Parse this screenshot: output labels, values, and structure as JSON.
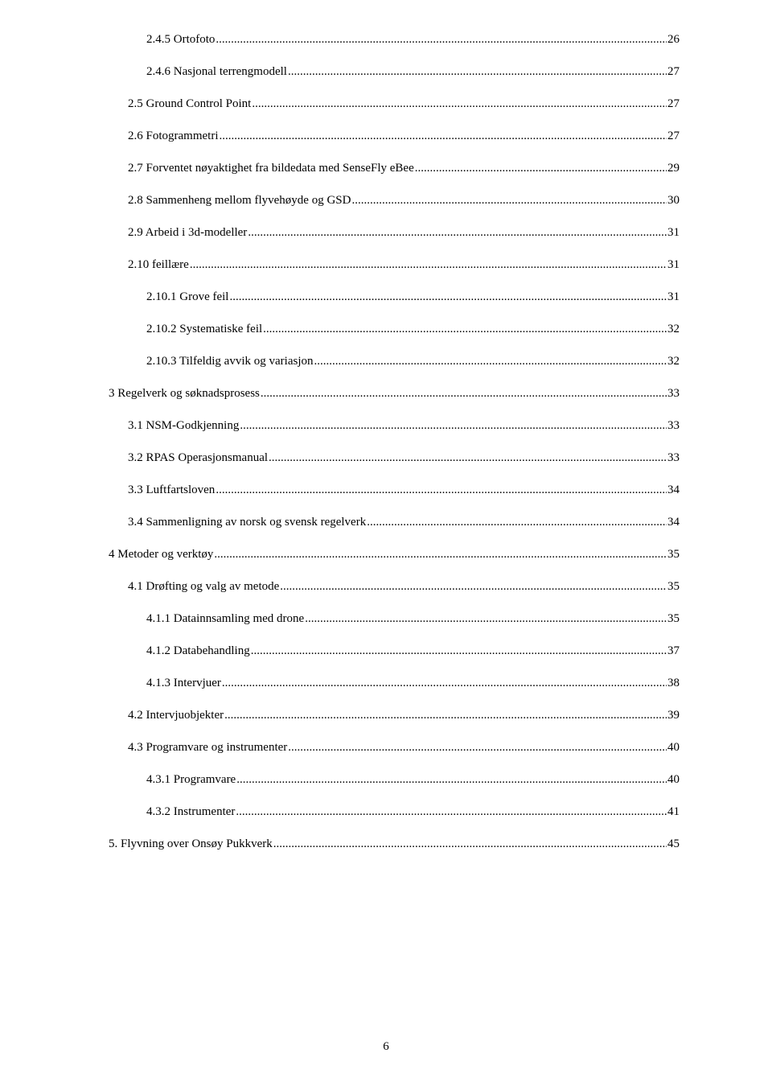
{
  "toc": [
    {
      "indent": 2,
      "label": "2.4.5 Ortofoto",
      "page": "26"
    },
    {
      "indent": 2,
      "label": "2.4.6 Nasjonal terrengmodell",
      "page": "27"
    },
    {
      "indent": 1,
      "label": "2.5 Ground Control Point",
      "page": "27"
    },
    {
      "indent": 1,
      "label": "2.6 Fotogrammetri",
      "page": "27"
    },
    {
      "indent": 1,
      "label": "2.7 Forventet nøyaktighet fra bildedata med SenseFly eBee",
      "page": "29"
    },
    {
      "indent": 1,
      "label": "2.8 Sammenheng mellom flyvehøyde og GSD",
      "page": "30"
    },
    {
      "indent": 1,
      "label": "2.9 Arbeid i 3d-modeller",
      "page": "31"
    },
    {
      "indent": 1,
      "label": "2.10 feillære",
      "page": "31"
    },
    {
      "indent": 2,
      "label": "2.10.1 Grove feil",
      "page": "31"
    },
    {
      "indent": 2,
      "label": "2.10.2 Systematiske feil",
      "page": "32"
    },
    {
      "indent": 2,
      "label": "2.10.3 Tilfeldig avvik og variasjon",
      "page": "32"
    },
    {
      "indent": 0,
      "label": "3 Regelverk og søknadsprosess",
      "page": "33"
    },
    {
      "indent": 1,
      "label": "3.1 NSM-Godkjenning",
      "page": "33"
    },
    {
      "indent": 1,
      "label": "3.2 RPAS Operasjonsmanual",
      "page": "33"
    },
    {
      "indent": 1,
      "label": "3.3 Luftfartsloven",
      "page": "34"
    },
    {
      "indent": 1,
      "label": "3.4 Sammenligning av norsk og svensk regelverk",
      "page": "34"
    },
    {
      "indent": 0,
      "label": "4 Metoder og verktøy",
      "page": "35"
    },
    {
      "indent": 1,
      "label": "4.1 Drøfting og valg av metode",
      "page": "35"
    },
    {
      "indent": 2,
      "label": "4.1.1 Datainnsamling med drone",
      "page": "35"
    },
    {
      "indent": 2,
      "label": "4.1.2 Databehandling",
      "page": "37"
    },
    {
      "indent": 2,
      "label": "4.1.3 Intervjuer",
      "page": "38"
    },
    {
      "indent": 1,
      "label": "4.2 Intervjuobjekter",
      "page": "39"
    },
    {
      "indent": 1,
      "label": "4.3 Programvare og instrumenter",
      "page": "40"
    },
    {
      "indent": 2,
      "label": "4.3.1 Programvare",
      "page": "40"
    },
    {
      "indent": 2,
      "label": "4.3.2 Instrumenter",
      "page": "41"
    },
    {
      "indent": 0,
      "label": "5. Flyvning over Onsøy Pukkverk",
      "page": "45"
    }
  ],
  "page_number": "6"
}
